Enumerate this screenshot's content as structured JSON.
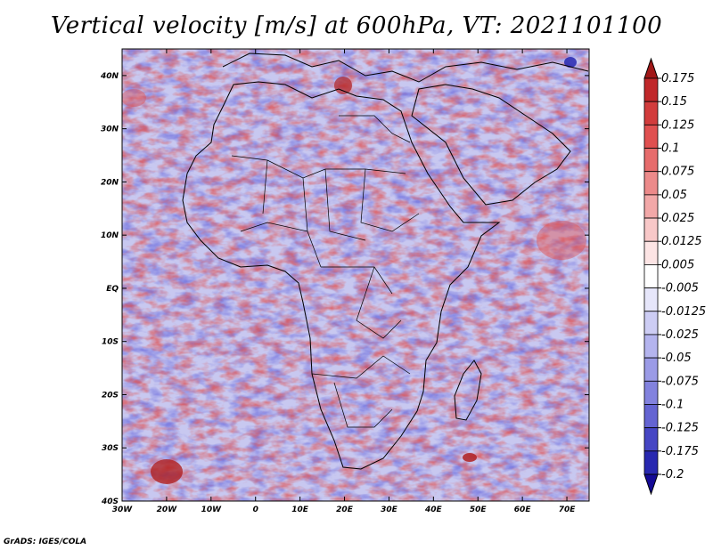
{
  "title": "Vertical velocity [m/s] at 600hPa, VT: 2021101100",
  "credit": "GrADS: IGES/COLA",
  "map": {
    "lon_labels": [
      "30W",
      "20W",
      "10W",
      "0",
      "10E",
      "20E",
      "30E",
      "40E",
      "50E",
      "60E",
      "70E"
    ],
    "lat_labels": [
      "40N",
      "30N",
      "20N",
      "10N",
      "EQ",
      "10S",
      "20S",
      "30S",
      "40S"
    ],
    "lon_range": [
      -30,
      75
    ],
    "lat_range": [
      -40,
      45
    ]
  },
  "colorbar": {
    "labels": [
      "0.175",
      "0.15",
      "0.125",
      "0.1",
      "0.075",
      "0.05",
      "0.025",
      "0.0125",
      "0.005",
      "-0.005",
      "-0.0125",
      "-0.025",
      "-0.05",
      "-0.075",
      "-0.1",
      "-0.125",
      "-0.175",
      "-0.2"
    ],
    "colors": [
      "#a01818",
      "#c0282a",
      "#d23c3c",
      "#e05050",
      "#e66c6c",
      "#ec8a8a",
      "#f2a8a8",
      "#f8c8c8",
      "#fce4e4",
      "#ffffff",
      "#e6e6fa",
      "#cdcdf4",
      "#b4b4ee",
      "#9b9be6",
      "#8282de",
      "#6464d2",
      "#4646c4",
      "#2828b0",
      "#140a96"
    ]
  },
  "colors": {
    "positive": "#e05050",
    "negative": "#6464d2",
    "coastline": "#000000"
  }
}
